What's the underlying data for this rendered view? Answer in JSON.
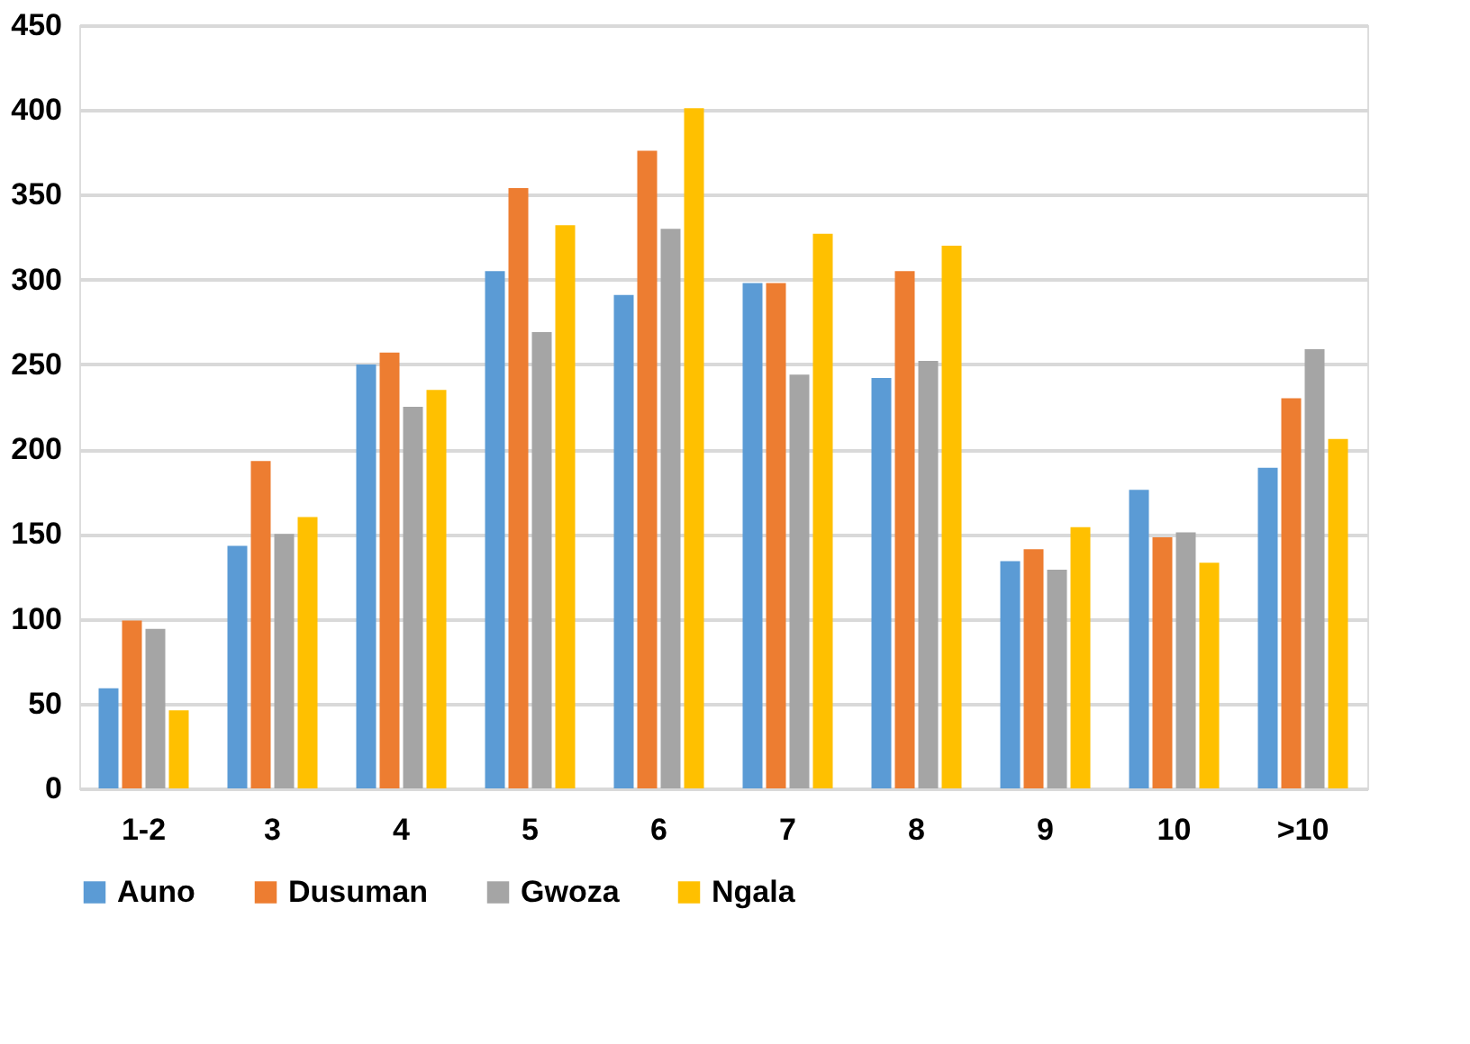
{
  "chart_data": {
    "type": "bar",
    "categories": [
      "1-2",
      "3",
      "4",
      "5",
      "6",
      "7",
      "8",
      "9",
      "10",
      ">10"
    ],
    "series": [
      {
        "name": "Auno",
        "color": "#5b9bd5",
        "values": [
          59,
          143,
          250,
          305,
          291,
          298,
          242,
          134,
          176,
          189
        ]
      },
      {
        "name": "Dusuman",
        "color": "#ed7d31",
        "values": [
          99,
          193,
          257,
          354,
          376,
          298,
          305,
          141,
          148,
          230
        ]
      },
      {
        "name": "Gwoza",
        "color": "#a5a5a5",
        "values": [
          94,
          150,
          225,
          269,
          330,
          244,
          252,
          129,
          151,
          259
        ]
      },
      {
        "name": "Ngala",
        "color": "#ffc000",
        "values": [
          46,
          160,
          235,
          332,
          401,
          327,
          320,
          154,
          133,
          206
        ]
      }
    ],
    "ylim": [
      0,
      450
    ],
    "yticks": [
      0,
      50,
      100,
      150,
      200,
      250,
      300,
      350,
      400,
      450
    ],
    "grid": "y",
    "legend": "bottom"
  }
}
